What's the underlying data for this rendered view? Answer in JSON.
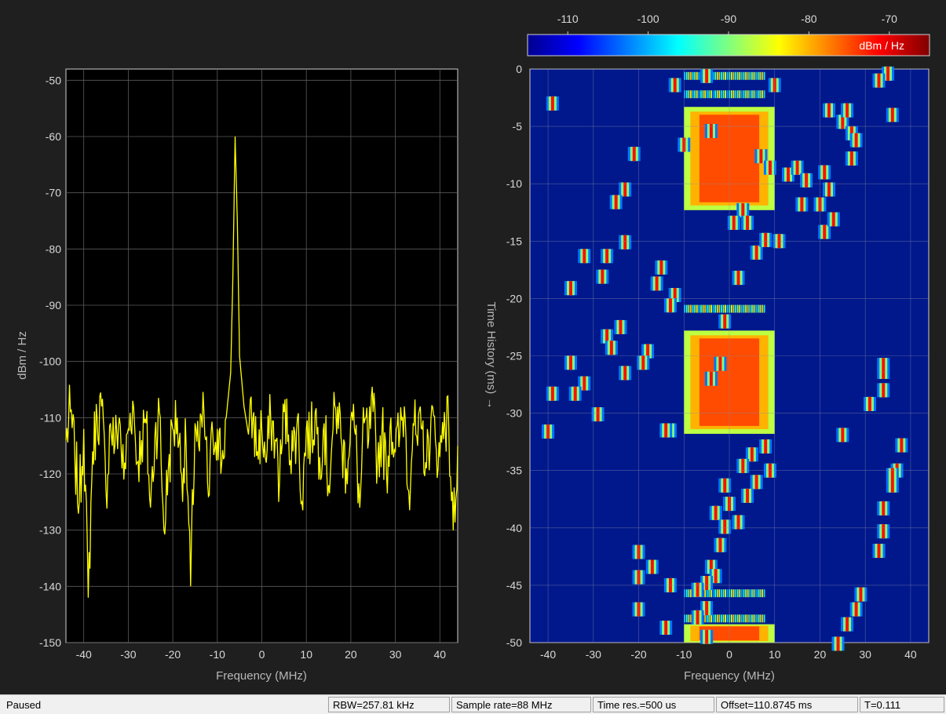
{
  "status": {
    "state": "Paused",
    "rbw": "RBW=257.81 kHz",
    "sample_rate": "Sample rate=88 MHz",
    "time_res": "Time res.=500 us",
    "offset": "Offset=110.8745 ms",
    "t": "T=0.111"
  },
  "colors": {
    "figure_bg": "#1f1f1f",
    "axes_bg": "#000000",
    "trace": "#ffff00",
    "grid": "#5a5a5a",
    "tick_text": "#d8d8d8",
    "colorbar_label": "#ffffff",
    "spectrogram_bg": "#00188c"
  },
  "chart_data": [
    {
      "type": "line",
      "name": "spectrum",
      "xlabel": "Frequency (MHz)",
      "ylabel": "dBm / Hz",
      "xlim": [
        -44,
        44
      ],
      "ylim": [
        -150,
        -48
      ],
      "xticks": [
        -40,
        -30,
        -20,
        -10,
        0,
        10,
        20,
        30,
        40
      ],
      "yticks": [
        -50,
        -60,
        -70,
        -80,
        -90,
        -100,
        -110,
        -120,
        -130,
        -140,
        -150
      ],
      "grid": true,
      "peak": {
        "frequency_mhz": -6,
        "power_dbm_hz": -60
      },
      "noise_floor_dbm_hz": -115,
      "series": [
        {
          "x": [
            -44,
            -43,
            -42,
            -41,
            -40,
            -39,
            -38,
            -37,
            -36,
            -35,
            -34,
            -33,
            -32,
            -31,
            -30,
            -29,
            -28,
            -27,
            -26,
            -25,
            -24,
            -23,
            -22,
            -21,
            -20,
            -19,
            -18,
            -17,
            -16,
            -15,
            -14,
            -13,
            -12,
            -11,
            -10,
            -9,
            -8,
            -7,
            -6.5,
            -6,
            -5.5,
            -5,
            -4,
            -3,
            -2,
            -1,
            0,
            1,
            2,
            3,
            4,
            5,
            6,
            7,
            8,
            9,
            10,
            11,
            12,
            13,
            14,
            15,
            16,
            17,
            18,
            19,
            20,
            21,
            22,
            23,
            24,
            25,
            26,
            27,
            28,
            29,
            30,
            31,
            32,
            33,
            34,
            35,
            36,
            37,
            38,
            39,
            40,
            41,
            42,
            43,
            44
          ],
          "y": [
            -114,
            -109,
            -117,
            -125,
            -112,
            -142,
            -116,
            -110,
            -108,
            -123,
            -111,
            -115,
            -110,
            -121,
            -112,
            -107,
            -118,
            -114,
            -111,
            -126,
            -113,
            -109,
            -130,
            -119,
            -112,
            -110,
            -120,
            -115,
            -140,
            -111,
            -116,
            -109,
            -124,
            -113,
            -112,
            -118,
            -110,
            -102,
            -85,
            -60,
            -75,
            -99,
            -108,
            -113,
            -110,
            -116,
            -112,
            -118,
            -110,
            -114,
            -121,
            -109,
            -113,
            -116,
            -110,
            -125,
            -112,
            -114,
            -109,
            -117,
            -111,
            -122,
            -112,
            -108,
            -115,
            -119,
            -110,
            -113,
            -126,
            -111,
            -114,
            -109,
            -118,
            -112,
            -120,
            -110,
            -116,
            -113,
            -108,
            -123,
            -111,
            -115,
            -112,
            -119,
            -110,
            -114,
            -117,
            -109,
            -112,
            -130,
            -115
          ]
        }
      ]
    },
    {
      "type": "heatmap",
      "name": "spectrogram",
      "xlabel": "Frequency (MHz)",
      "ylabel": "Time History (ms) →",
      "xlim": [
        -44,
        44
      ],
      "ylim": [
        -50,
        0
      ],
      "xticks": [
        -40,
        -30,
        -20,
        -10,
        0,
        10,
        20,
        30,
        40
      ],
      "yticks": [
        0,
        -5,
        -10,
        -15,
        -20,
        -25,
        -30,
        -35,
        -40,
        -45,
        -50
      ],
      "grid": true,
      "colorbar": {
        "label": "dBm / Hz",
        "ticks": [
          -110,
          -100,
          -90,
          -80,
          -70
        ],
        "range": [
          -115,
          -65
        ],
        "colormap": "jet"
      },
      "bursts": [
        {
          "f_start": -10,
          "f_end": 10,
          "t_start": -3.3,
          "t_end": -12.3,
          "level": -75
        },
        {
          "f_start": -10,
          "f_end": 10,
          "t_start": -22.8,
          "t_end": -31.8,
          "level": -75
        },
        {
          "f_start": -10,
          "f_end": 10,
          "t_start": -48.4,
          "t_end": -50,
          "level": -75
        }
      ],
      "tone_lines": [
        {
          "f_start": -10,
          "f_end": 8,
          "t": -0.6,
          "level": -90
        },
        {
          "f_start": -10,
          "f_end": 8,
          "t": -2.2,
          "level": -92
        },
        {
          "f_start": -10,
          "f_end": 8,
          "t": -20.9,
          "level": -90
        },
        {
          "f_start": -10,
          "f_end": 8,
          "t": -45.7,
          "level": -92
        },
        {
          "f_start": -10,
          "f_end": 8,
          "t": -47.9,
          "level": -90
        }
      ],
      "hops": [
        [
          -39,
          -3
        ],
        [
          -12,
          -1.4
        ],
        [
          -5,
          -0.6
        ],
        [
          -4,
          -5.4
        ],
        [
          -10,
          -6.6
        ],
        [
          -21,
          -7.4
        ],
        [
          -23,
          -10.5
        ],
        [
          -25,
          -11.6
        ],
        [
          -23,
          -15.1
        ],
        [
          -27,
          -16.3
        ],
        [
          -32,
          -16.3
        ],
        [
          -28,
          -18.1
        ],
        [
          -35,
          -19.1
        ],
        [
          -15,
          -17.3
        ],
        [
          -16,
          -18.7
        ],
        [
          -12,
          -19.7
        ],
        [
          -13,
          -20.6
        ],
        [
          -27,
          -23.3
        ],
        [
          -24,
          -22.5
        ],
        [
          -26,
          -24.3
        ],
        [
          -35,
          -25.6
        ],
        [
          -18,
          -24.6
        ],
        [
          -19,
          -25.6
        ],
        [
          -23,
          -26.5
        ],
        [
          -32,
          -27.4
        ],
        [
          -34,
          -28.3
        ],
        [
          -39,
          -28.3
        ],
        [
          -29,
          -30.1
        ],
        [
          -40,
          -31.6
        ],
        [
          -13,
          -31.5
        ],
        [
          -1,
          -22
        ],
        [
          -4,
          -27
        ],
        [
          -2,
          -25.7
        ],
        [
          3,
          -12.3
        ],
        [
          1,
          -13.4
        ],
        [
          4,
          -13.4
        ],
        [
          6,
          -16
        ],
        [
          8,
          -14.9
        ],
        [
          2,
          -18.2
        ],
        [
          7,
          -7.6
        ],
        [
          9,
          -8.6
        ],
        [
          11,
          -15
        ],
        [
          10,
          -1.4
        ],
        [
          13,
          -9.2
        ],
        [
          15,
          -8.6
        ],
        [
          16,
          -11.8
        ],
        [
          17,
          -9.7
        ],
        [
          21,
          -9
        ],
        [
          22,
          -10.5
        ],
        [
          20,
          -11.8
        ],
        [
          21,
          -14.2
        ],
        [
          23,
          -13.1
        ],
        [
          22,
          -3.6
        ],
        [
          25,
          -4.6
        ],
        [
          26,
          -3.6
        ],
        [
          27,
          -5.6
        ],
        [
          28,
          -6.2
        ],
        [
          27,
          -7.8
        ],
        [
          35,
          -0.4
        ],
        [
          33,
          -1
        ],
        [
          36,
          -4
        ],
        [
          31,
          -29.2
        ],
        [
          34,
          -28
        ],
        [
          34,
          -26.4
        ],
        [
          25,
          -31.9
        ],
        [
          -14,
          -31.5
        ],
        [
          8,
          -32.9
        ],
        [
          5,
          -33.6
        ],
        [
          3,
          -34.6
        ],
        [
          6,
          -36
        ],
        [
          9,
          -35
        ],
        [
          4,
          -37.2
        ],
        [
          -1,
          -36.3
        ],
        [
          0,
          -37.9
        ],
        [
          -3,
          -38.7
        ],
        [
          -1,
          -39.9
        ],
        [
          2,
          -39.5
        ],
        [
          -2,
          -41.5
        ],
        [
          -4,
          -43.4
        ],
        [
          -3,
          -44.2
        ],
        [
          -5,
          -44.8
        ],
        [
          -7,
          -45.4
        ],
        [
          -13,
          -45
        ],
        [
          -17,
          -43.4
        ],
        [
          -20,
          -42.1
        ],
        [
          -20,
          -44.3
        ],
        [
          -20,
          -47.1
        ],
        [
          -14,
          -48.7
        ],
        [
          -5,
          -47
        ],
        [
          -7,
          -47.8
        ],
        [
          -5,
          -49.5
        ],
        [
          29,
          -45.8
        ],
        [
          28,
          -47.1
        ],
        [
          26,
          -48.4
        ],
        [
          24,
          -50.1
        ],
        [
          33,
          -42
        ],
        [
          34,
          -40.3
        ],
        [
          34,
          -38.3
        ],
        [
          36,
          -36.3
        ],
        [
          37,
          -35
        ],
        [
          38,
          -32.8
        ],
        [
          36,
          -35.4
        ],
        [
          34,
          -25.8
        ]
      ]
    }
  ]
}
